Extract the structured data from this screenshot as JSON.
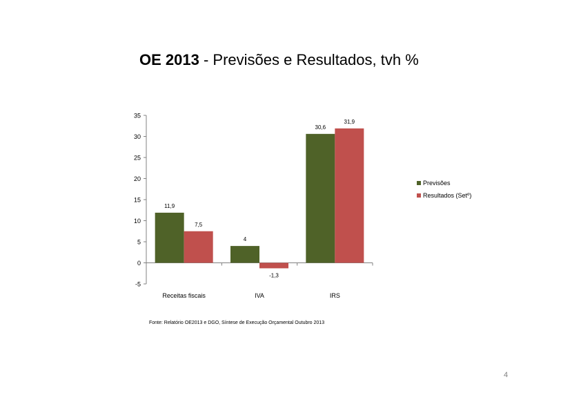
{
  "slide": {
    "title_bold": "OE 2013",
    "title_rest": " - Previsões e Resultados, tvh %",
    "source": "Fonte: Relatório OE2013 e DGO, Síntese de Execução Orçamental Outubro 2013",
    "page_number": "4"
  },
  "chart_data": {
    "type": "bar",
    "categories": [
      "Receitas fiscais",
      "IVA",
      "IRS"
    ],
    "series": [
      {
        "name": "Previsões",
        "values": [
          11.9,
          4,
          30.6
        ],
        "labels": [
          "11,9",
          "4",
          "30,6"
        ],
        "color": "#4f6228"
      },
      {
        "name": "Resultados (Setº)",
        "values": [
          7.5,
          -1.3,
          31.9
        ],
        "labels": [
          "7,5",
          "-1,3",
          "31,9"
        ],
        "color": "#c0504d"
      }
    ],
    "ylim": [
      -5,
      35
    ],
    "yticks": [
      -5,
      0,
      5,
      10,
      15,
      20,
      25,
      30,
      35
    ],
    "legend_position": "right",
    "grid": false
  }
}
